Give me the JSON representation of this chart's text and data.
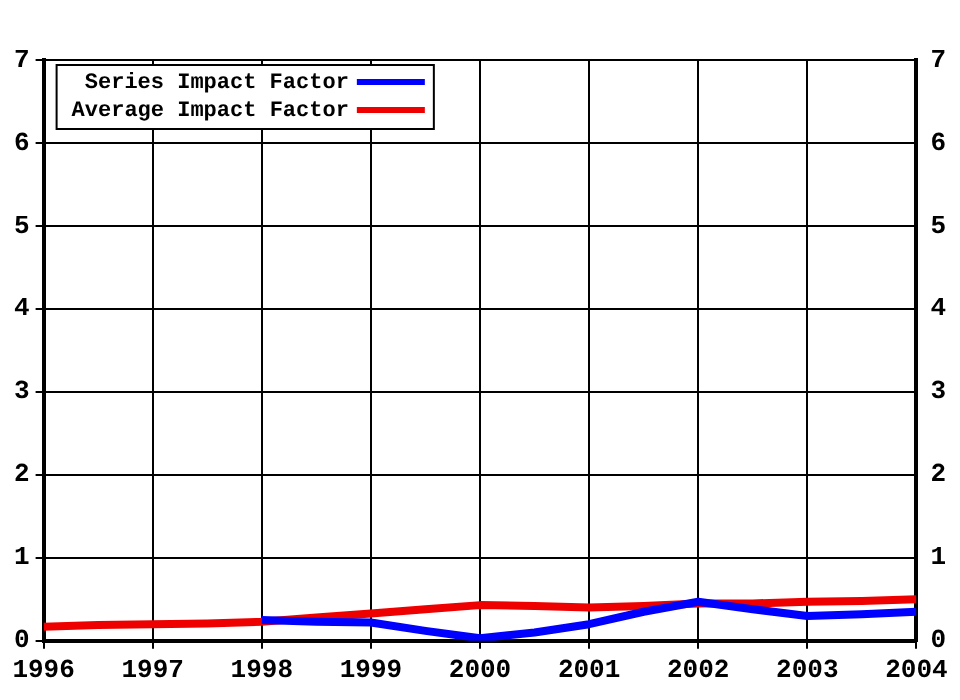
{
  "chart_data": {
    "type": "line",
    "xlim": [
      1996,
      2004
    ],
    "xticks": [
      1996,
      1997,
      1998,
      1999,
      2000,
      2001,
      2002,
      2003,
      2004
    ],
    "ylim": [
      0,
      7
    ],
    "yticks": [
      0,
      1,
      2,
      3,
      4,
      5,
      6,
      7
    ],
    "y2lim": [
      0,
      7
    ],
    "y2ticks": [
      0,
      1,
      2,
      3,
      4,
      5,
      6,
      7
    ],
    "grid": true,
    "legend": "top left",
    "marker": "none",
    "line_style": "solid",
    "series": [
      {
        "name": "Series Impact Factor",
        "color": "#0000ff",
        "x": [
          1998,
          1998.5,
          1999,
          1999.5,
          2000,
          2000.5,
          2001,
          2001.5,
          2002,
          2002.5,
          2003,
          2003.5,
          2004
        ],
        "values": [
          0.25,
          0.23,
          0.22,
          0.12,
          0.03,
          0.1,
          0.2,
          0.35,
          0.47,
          0.38,
          0.3,
          0.32,
          0.35
        ]
      },
      {
        "name": "Average Impact Factor",
        "color": "#ee0000",
        "x": [
          1996,
          1996.5,
          1997,
          1997.5,
          1998,
          1998.5,
          1999,
          1999.5,
          2000,
          2000.5,
          2001,
          2001.5,
          2002,
          2002.5,
          2003,
          2003.5,
          2004
        ],
        "values": [
          0.17,
          0.19,
          0.2,
          0.21,
          0.23,
          0.28,
          0.33,
          0.38,
          0.43,
          0.42,
          0.4,
          0.42,
          0.45,
          0.45,
          0.47,
          0.48,
          0.5
        ]
      }
    ]
  }
}
